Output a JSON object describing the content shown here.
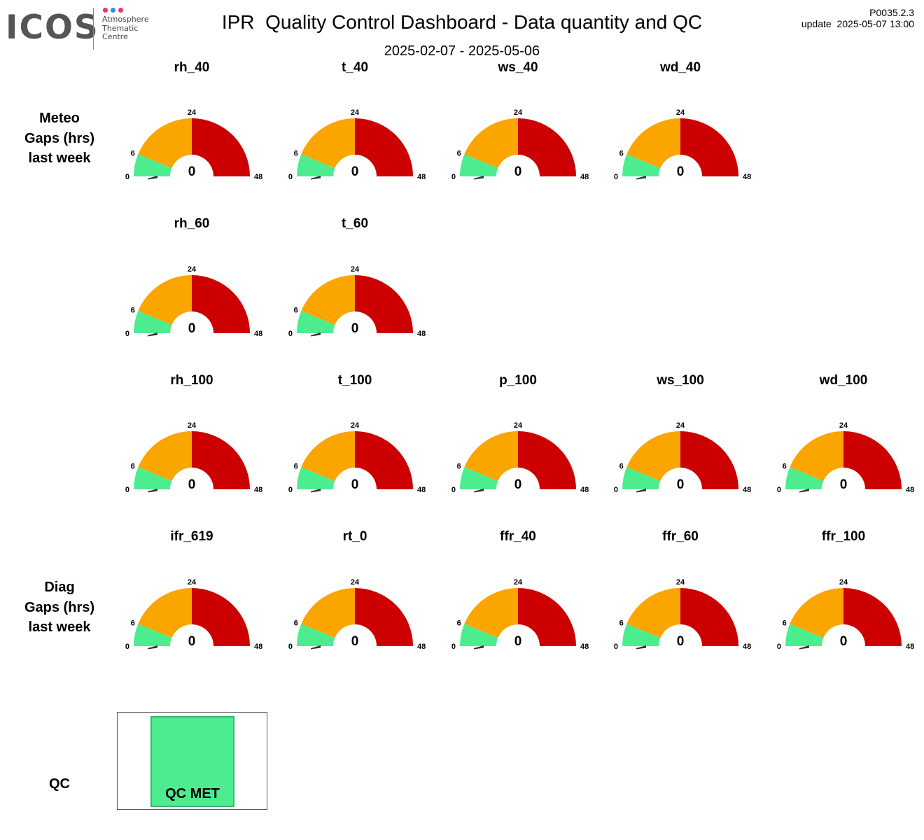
{
  "header": {
    "logo_word": "ICOS",
    "logo_lines": [
      "Atmosphere",
      "Thematic",
      "Centre"
    ],
    "logo_dot_colors": [
      "#e8336d",
      "#2e8fd6",
      "#e8336d"
    ],
    "title": "IPR  Quality Control Dashboard - Data quantity and QC",
    "subtitle": "2025-02-07 - 2025-05-06",
    "version": "P0035.2.3",
    "update": "update  2025-05-07 13:00"
  },
  "row_labels": {
    "meteo": [
      "Meteo",
      "Gaps (hrs)",
      "last week"
    ],
    "diag": [
      "Diag",
      "Gaps (hrs)",
      "last week"
    ],
    "qc": "QC"
  },
  "colors": {
    "green": "#4ded8f",
    "orange": "#fba500",
    "red": "#cc0000",
    "needle": "#333333"
  },
  "chart_data": [
    {
      "type": "gauge",
      "scale": {
        "min": 0,
        "max": 48,
        "tick_labels": [
          "0",
          "6",
          "24",
          "48"
        ]
      },
      "bands": [
        {
          "from": 0,
          "to": 6,
          "color": "green"
        },
        {
          "from": 6,
          "to": 24,
          "color": "orange"
        },
        {
          "from": 24,
          "to": 48,
          "color": "red"
        }
      ],
      "gauges": [
        {
          "title": "rh_40",
          "value": 0
        },
        {
          "title": "t_40",
          "value": 0
        },
        {
          "title": "ws_40",
          "value": 0
        },
        {
          "title": "wd_40",
          "value": 0
        },
        {
          "title": "rh_60",
          "value": 0
        },
        {
          "title": "t_60",
          "value": 0
        },
        {
          "title": "rh_100",
          "value": 0
        },
        {
          "title": "t_100",
          "value": 0
        },
        {
          "title": "p_100",
          "value": 0
        },
        {
          "title": "ws_100",
          "value": 0
        },
        {
          "title": "wd_100",
          "value": 0
        },
        {
          "title": "ifr_619",
          "value": 0
        },
        {
          "title": "rt_0",
          "value": 0
        },
        {
          "title": "ffr_40",
          "value": 0
        },
        {
          "title": "ffr_60",
          "value": 0
        },
        {
          "title": "ffr_100",
          "value": 0
        }
      ]
    }
  ],
  "qc": {
    "label": "QC MET",
    "color": "#4ded8f"
  }
}
